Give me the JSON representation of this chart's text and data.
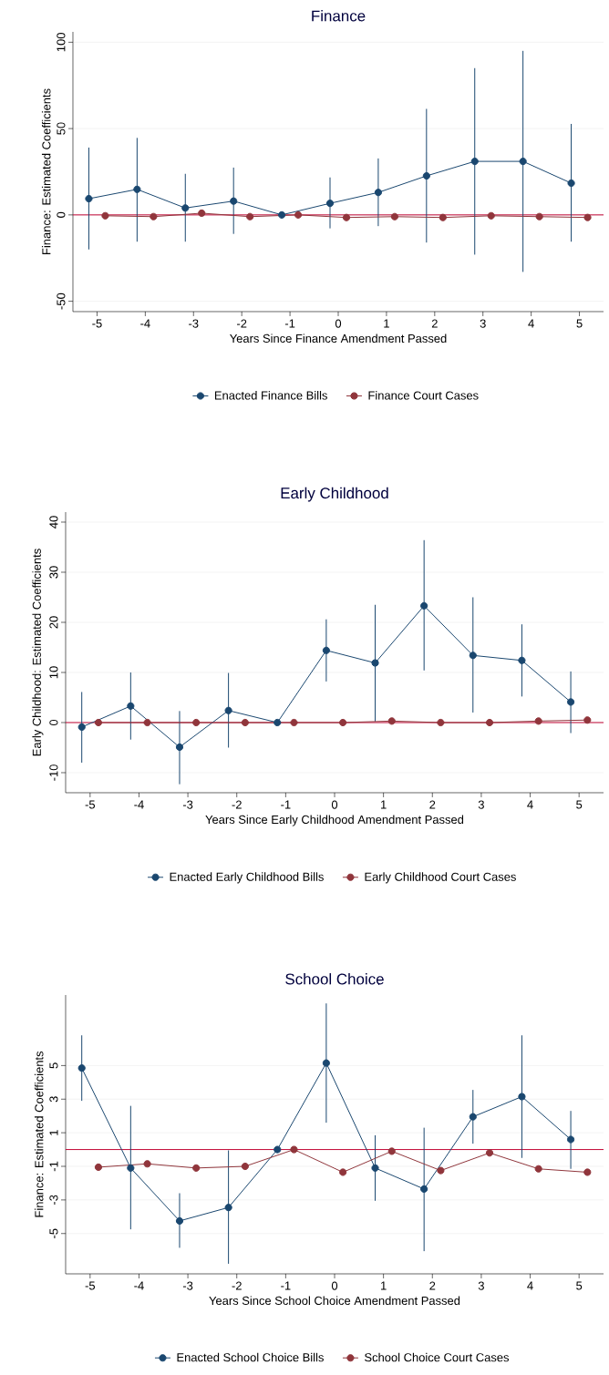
{
  "chart_data": [
    {
      "type": "line",
      "title": "Finance",
      "xlabel": "Years Since Finance Amendment Passed",
      "ylabel": "Finance: Estimated Coefficients",
      "xlim": [
        -5.5,
        5.5
      ],
      "ylim": [
        -56,
        106
      ],
      "xticks": [
        -5,
        -4,
        -3,
        -2,
        -1,
        0,
        1,
        2,
        3,
        4,
        5
      ],
      "yticks": [
        -50,
        0,
        50,
        100
      ],
      "grid": "y",
      "legend": "bottom",
      "marker": "circle",
      "ref_lines": [
        {
          "axis": "y",
          "value": 0,
          "color": "#c10534"
        }
      ],
      "series": [
        {
          "name": "Enacted Finance Bills",
          "color": "#1a476f",
          "x": [
            -5.17,
            -4.17,
            -3.17,
            -2.17,
            -1.17,
            -0.17,
            0.83,
            1.83,
            2.83,
            3.83,
            4.83
          ],
          "values": [
            9.4,
            14.8,
            4,
            8,
            0,
            6.7,
            13,
            22.6,
            31,
            31,
            18.4
          ],
          "errors": [
            [
              -20,
              39
            ],
            [
              -15.5,
              44.6
            ],
            [
              -15.5,
              23.8
            ],
            [
              -11,
              27.4
            ],
            null,
            [
              -7.8,
              21.7
            ],
            [
              -6.5,
              32.7
            ],
            [
              -16,
              61.4
            ],
            [
              -23,
              85
            ],
            [
              -33,
              95
            ],
            [
              -15.5,
              52.7
            ]
          ]
        },
        {
          "name": "Finance Court Cases",
          "color": "#90353b",
          "x": [
            -4.83,
            -3.83,
            -2.83,
            -1.83,
            -0.83,
            0.17,
            1.17,
            2.17,
            3.17,
            4.17,
            5.17
          ],
          "values": [
            -0.5,
            -1,
            1,
            -1,
            0,
            -1.5,
            -1,
            -1.5,
            -0.5,
            -1,
            -1.5
          ]
        }
      ]
    },
    {
      "type": "line",
      "title": "Early Childhood",
      "xlabel": "Years Since Early Childhood Amendment Passed",
      "ylabel": "Early Childhood: Estimated Coefficients",
      "xlim": [
        -5.5,
        5.5
      ],
      "ylim": [
        -14,
        42
      ],
      "xticks": [
        -5,
        -4,
        -3,
        -2,
        -1,
        0,
        1,
        2,
        3,
        4,
        5
      ],
      "yticks": [
        -10,
        0,
        10,
        20,
        30,
        40
      ],
      "grid": "y",
      "legend": "bottom",
      "marker": "circle",
      "ref_lines": [
        {
          "axis": "y",
          "value": 0,
          "color": "#c10534"
        }
      ],
      "series": [
        {
          "name": "Enacted Early Childhood Bills",
          "color": "#1a476f",
          "x": [
            -5.17,
            -4.17,
            -3.17,
            -2.17,
            -1.17,
            -0.17,
            0.83,
            1.83,
            2.83,
            3.83,
            4.83
          ],
          "values": [
            -0.9,
            3.3,
            -4.9,
            2.4,
            0,
            14.4,
            11.9,
            23.3,
            13.4,
            12.4,
            4.1
          ],
          "errors": [
            [
              -8,
              6.1
            ],
            [
              -3.4,
              10
            ],
            [
              -12.3,
              2.3
            ],
            [
              -5,
              9.9
            ],
            null,
            [
              8.2,
              20.6
            ],
            [
              0.2,
              23.5
            ],
            [
              10.4,
              36.4
            ],
            [
              2,
              25
            ],
            [
              5.2,
              19.6
            ],
            [
              -2.1,
              10.2
            ]
          ]
        },
        {
          "name": "Early Childhood Court Cases",
          "color": "#90353b",
          "x": [
            -4.83,
            -3.83,
            -2.83,
            -1.83,
            -0.83,
            0.17,
            1.17,
            2.17,
            3.17,
            4.17,
            5.17
          ],
          "values": [
            0,
            0,
            0,
            0,
            0,
            0,
            0.3,
            0,
            0,
            0.3,
            0.5
          ]
        }
      ]
    },
    {
      "type": "line",
      "title": "School Choice",
      "xlabel": "Years Since School Choice Amendment Passed",
      "ylabel": "Finance: Estimated Coefficients",
      "xlim": [
        -5.5,
        5.5
      ],
      "ylim": [
        -7.4,
        9.2
      ],
      "xticks": [
        -5,
        -4,
        -3,
        -2,
        -1,
        0,
        1,
        2,
        3,
        4,
        5
      ],
      "yticks": [
        -5,
        -3,
        -1,
        1,
        3,
        5
      ],
      "grid": "y",
      "legend": "bottom",
      "marker": "circle",
      "ref_lines": [
        {
          "axis": "y",
          "value": 0,
          "color": "#c10534"
        }
      ],
      "series": [
        {
          "name": "Enacted School Choice Bills",
          "color": "#1a476f",
          "x": [
            -5.17,
            -4.17,
            -3.17,
            -2.17,
            -1.17,
            -0.17,
            0.83,
            1.83,
            2.83,
            3.83,
            4.83
          ],
          "values": [
            4.85,
            -1.1,
            -4.25,
            -3.45,
            0,
            5.15,
            -1.1,
            -2.35,
            1.95,
            3.15,
            0.6
          ],
          "errors": [
            [
              2.9,
              6.8
            ],
            [
              -4.75,
              2.6
            ],
            [
              -5.85,
              -2.6
            ],
            [
              -6.8,
              -0.05
            ],
            null,
            [
              1.6,
              8.7
            ],
            [
              -3.05,
              0.85
            ],
            [
              -6.05,
              1.3
            ],
            [
              0.35,
              3.55
            ],
            [
              -0.5,
              6.8
            ],
            [
              -1.15,
              2.3
            ]
          ]
        },
        {
          "name": "School Choice Court Cases",
          "color": "#90353b",
          "x": [
            -4.83,
            -3.83,
            -2.83,
            -1.83,
            -0.83,
            0.17,
            1.17,
            2.17,
            3.17,
            4.17,
            5.17
          ],
          "values": [
            -1.05,
            -0.85,
            -1.1,
            -1,
            0,
            -1.35,
            -0.1,
            -1.25,
            -0.2,
            -1.15,
            -1.35
          ]
        }
      ]
    }
  ]
}
